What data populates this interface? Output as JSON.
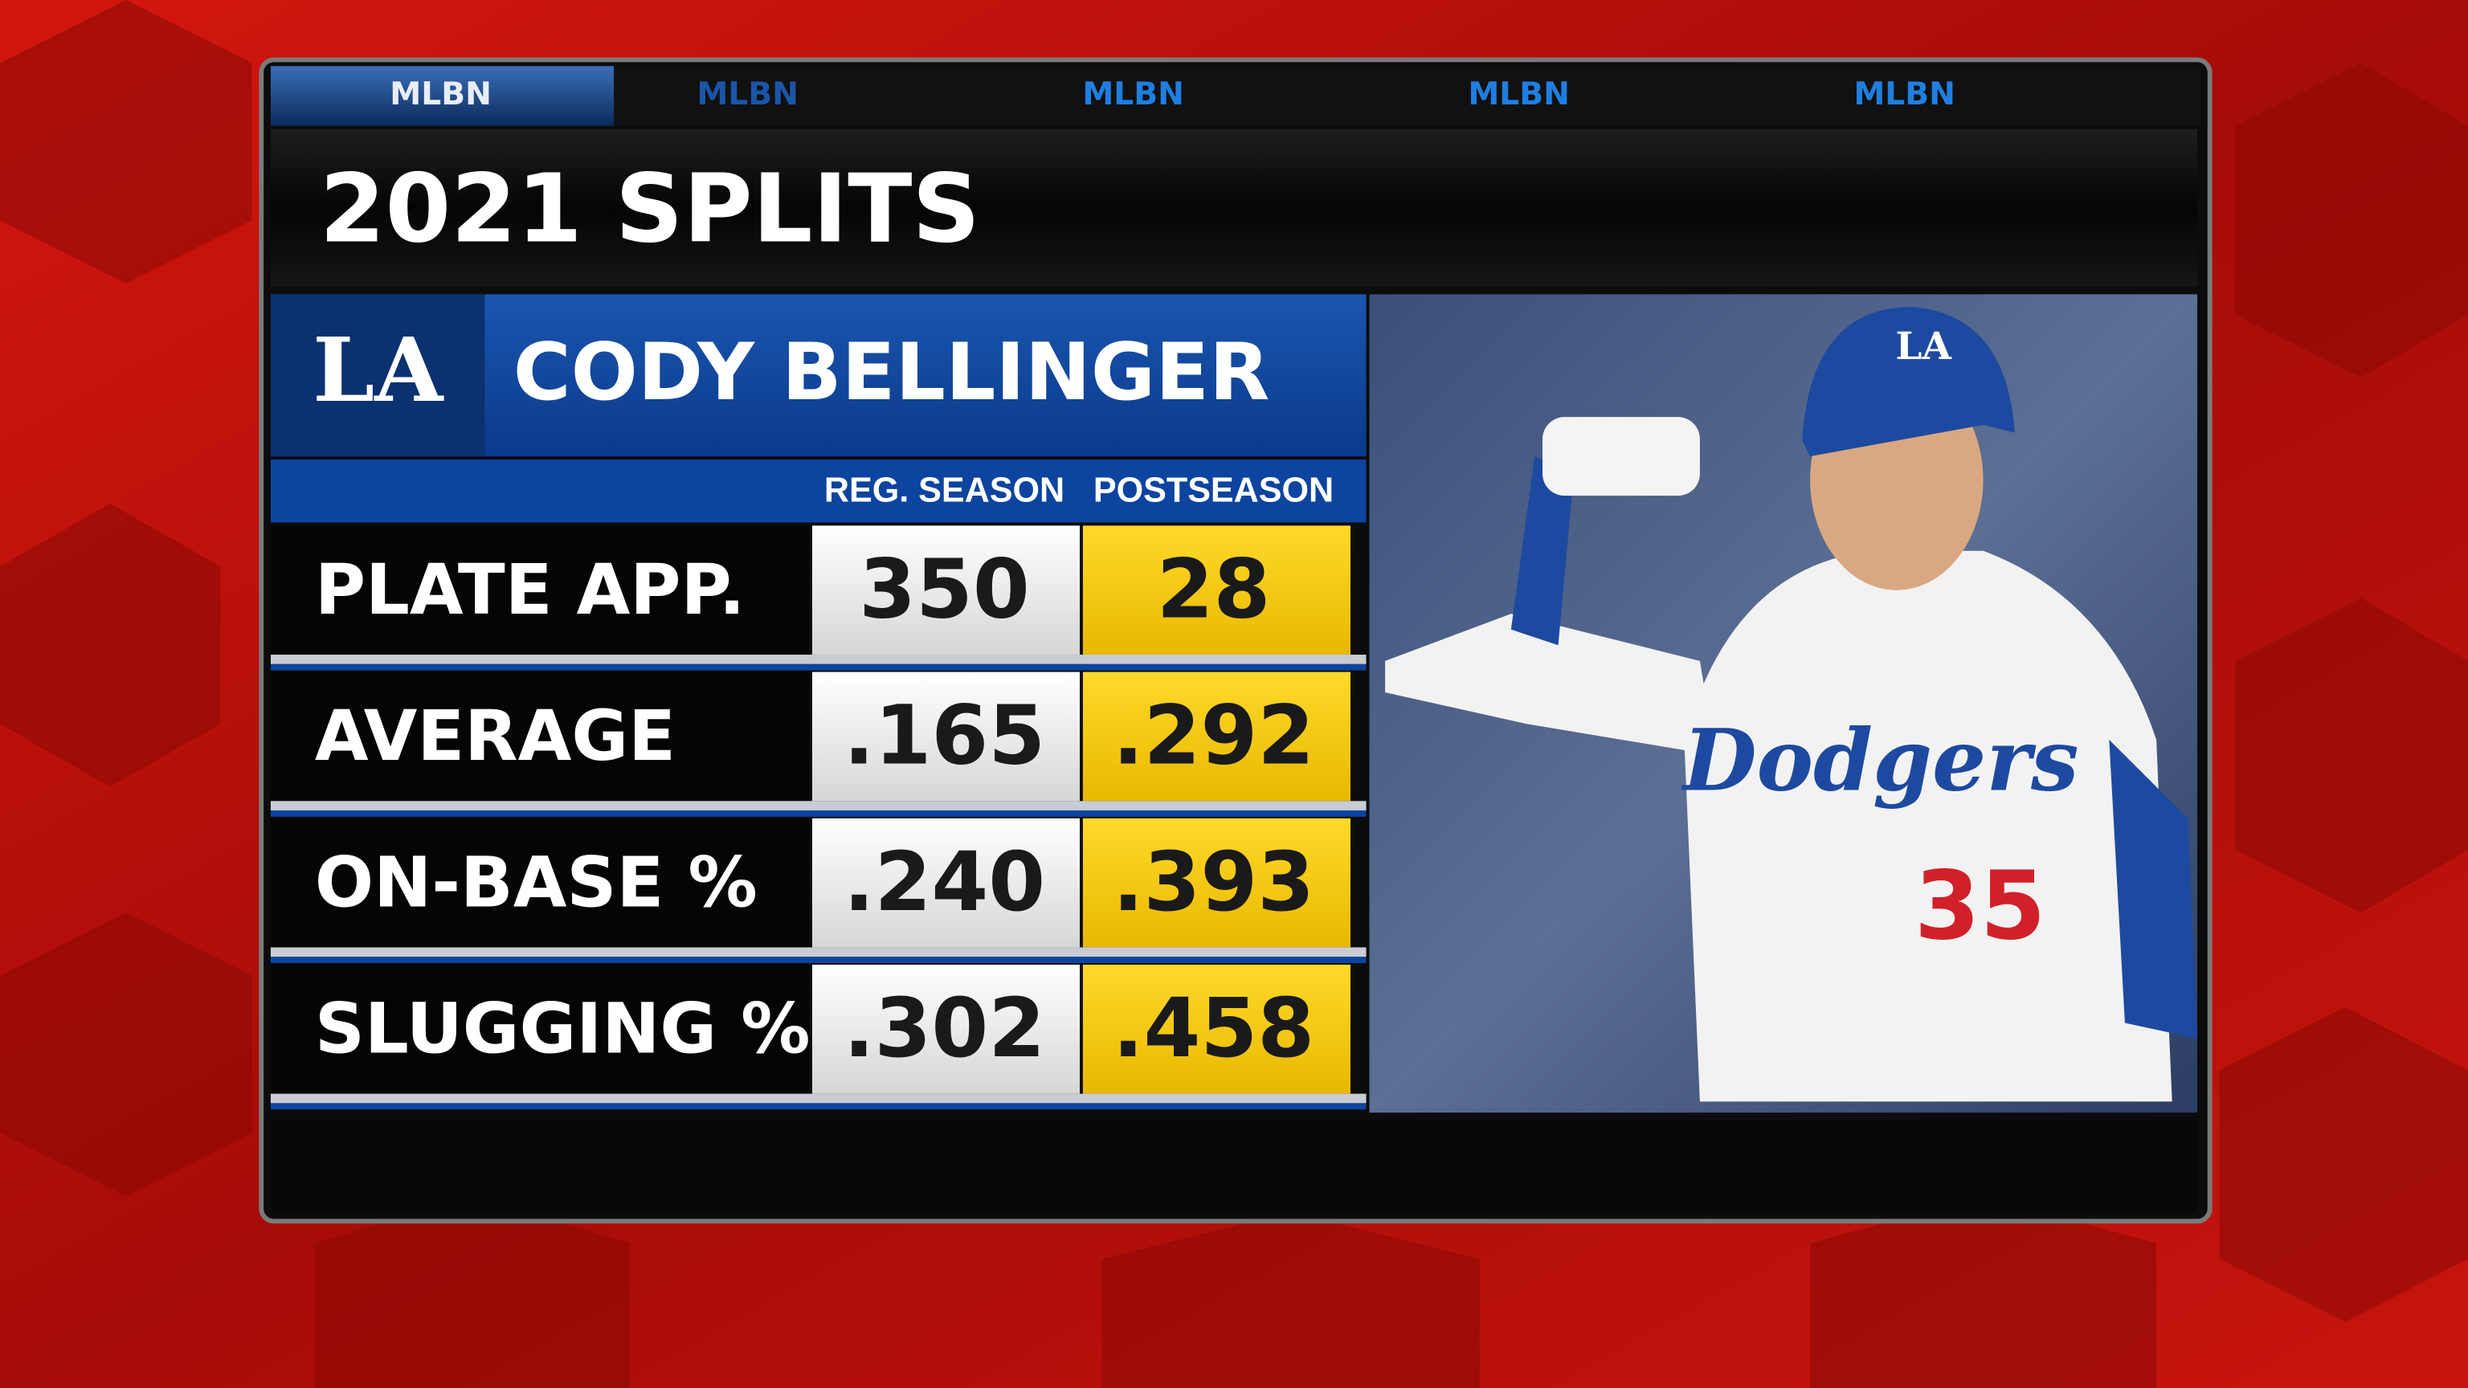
{
  "tabs": [
    "MLBN",
    "MLBN",
    "MLBN",
    "MLBN",
    "MLBN"
  ],
  "title": "2021 SPLITS",
  "team_logo": "LA",
  "player": "CODY BELLINGER",
  "table": {
    "columns": [
      "REG. SEASON",
      "POSTSEASON"
    ],
    "rows": [
      [
        "PLATE APP.",
        "350",
        "28"
      ],
      [
        "AVERAGE",
        ".165",
        ".292"
      ],
      [
        "ON-BASE %",
        ".240",
        ".393"
      ],
      [
        "SLUGGING %",
        ".302",
        ".458"
      ]
    ]
  },
  "photo": {
    "helmet_logo": "LA",
    "jersey": "Dodgers",
    "number": "35"
  }
}
